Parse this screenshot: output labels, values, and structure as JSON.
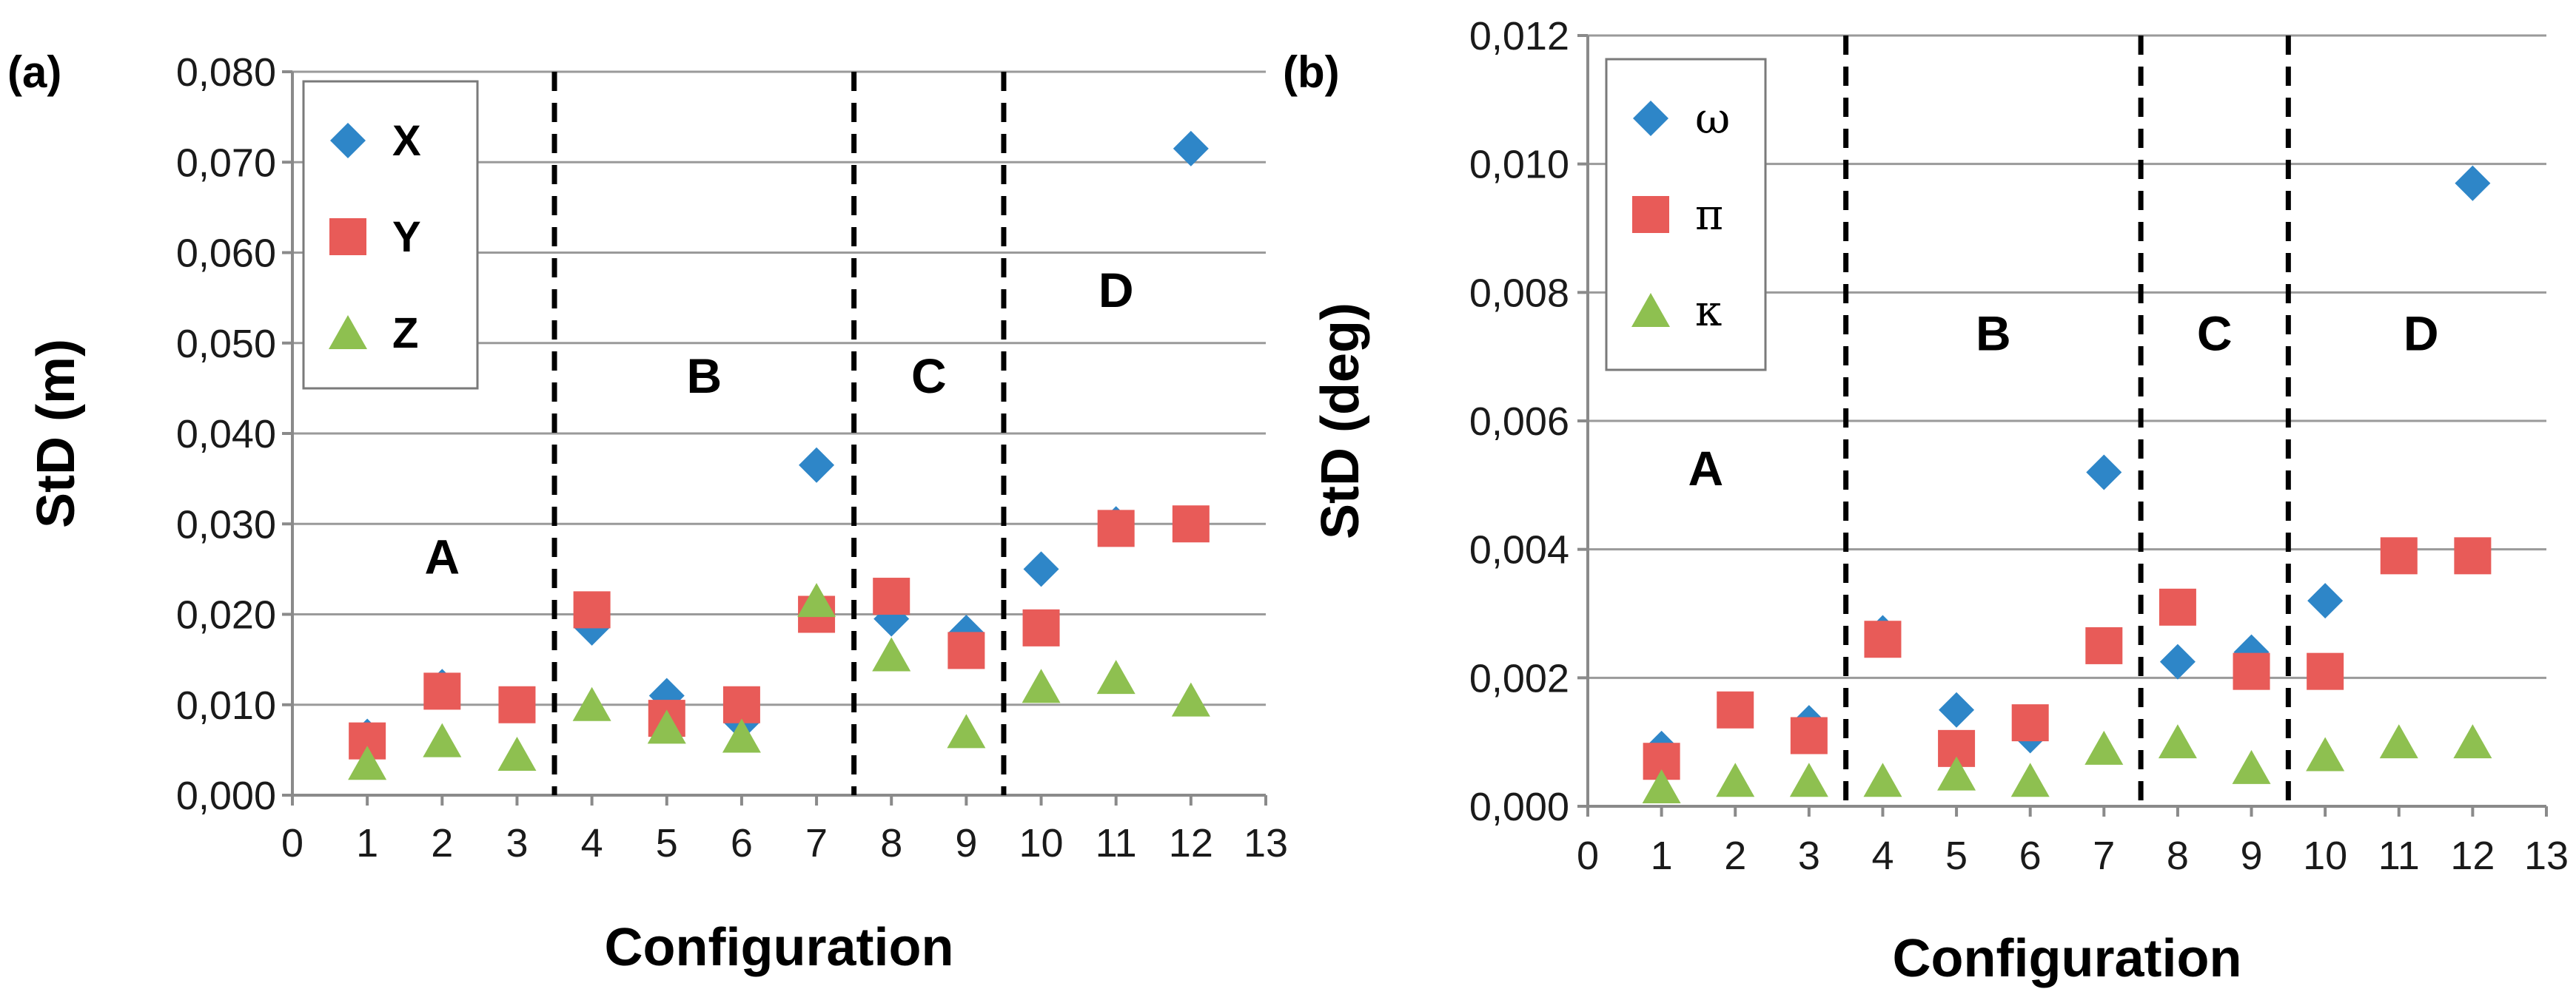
{
  "colors": {
    "X": "#2e86c8",
    "Y": "#e85b58",
    "Z": "#8ec050",
    "grid": "#9a9a9a",
    "axis": "#8a8a8a"
  },
  "chart_data": [
    {
      "panel": "(a)",
      "type": "scatter",
      "xlabel": "Configuration",
      "ylabel": "StD (m)",
      "xlim": [
        0,
        13
      ],
      "ylim": [
        0,
        0.08
      ],
      "xticks": [
        "0",
        "1",
        "2",
        "3",
        "4",
        "5",
        "6",
        "7",
        "8",
        "9",
        "10",
        "11",
        "12",
        "13"
      ],
      "yticks": [
        "0,000",
        "0,010",
        "0,020",
        "0,030",
        "0,040",
        "0,050",
        "0,060",
        "0,070",
        "0,080"
      ],
      "x": [
        1,
        2,
        3,
        4,
        5,
        6,
        7,
        8,
        9,
        10,
        11,
        12
      ],
      "series": [
        {
          "name": "X",
          "marker": "diamond",
          "values": [
            0.0065,
            0.012,
            0.01,
            0.0185,
            0.011,
            0.008,
            0.0365,
            0.0195,
            0.018,
            0.025,
            0.03,
            0.0715
          ]
        },
        {
          "name": "Y",
          "marker": "square",
          "values": [
            0.006,
            0.0115,
            0.01,
            0.0205,
            0.0085,
            0.01,
            0.02,
            0.022,
            0.016,
            0.0185,
            0.0295,
            0.03
          ]
        },
        {
          "name": "Z",
          "marker": "triangle",
          "values": [
            0.0035,
            0.006,
            0.0045,
            0.01,
            0.0075,
            0.0065,
            0.0215,
            0.0155,
            0.007,
            0.012,
            0.013,
            0.0105
          ]
        }
      ],
      "dividers": [
        3.5,
        7.5,
        9.5
      ],
      "regions": [
        {
          "label": "A",
          "x": 2,
          "y": 0.0245
        },
        {
          "label": "B",
          "x": 5.5,
          "y": 0.0445
        },
        {
          "label": "C",
          "x": 8.5,
          "y": 0.0445
        },
        {
          "label": "D",
          "x": 11,
          "y": 0.054
        }
      ],
      "legend": "top-left"
    },
    {
      "panel": "(b)",
      "type": "scatter",
      "xlabel": "Configuration",
      "ylabel": "StD (deg)",
      "xlim": [
        0,
        13
      ],
      "ylim": [
        0,
        0.012
      ],
      "xticks": [
        "0",
        "1",
        "2",
        "3",
        "4",
        "5",
        "6",
        "7",
        "8",
        "9",
        "10",
        "11",
        "12",
        "13"
      ],
      "yticks": [
        "0,000",
        "0,002",
        "0,004",
        "0,006",
        "0,008",
        "0,010",
        "0,012"
      ],
      "x": [
        1,
        2,
        3,
        4,
        5,
        6,
        7,
        8,
        9,
        10,
        11,
        12
      ],
      "series": [
        {
          "name": "ω",
          "marker": "diamond",
          "values": [
            0.0009,
            0.0015,
            0.0013,
            0.0027,
            0.0015,
            0.0011,
            0.0052,
            0.00225,
            0.0024,
            0.0032,
            0.0039,
            0.0097
          ]
        },
        {
          "name": "π",
          "marker": "square",
          "values": [
            0.0007,
            0.0015,
            0.0011,
            0.0026,
            0.0009,
            0.0013,
            0.0025,
            0.0031,
            0.0021,
            0.0021,
            0.0039,
            0.0039
          ]
        },
        {
          "name": "κ",
          "marker": "triangle",
          "values": [
            0.0003,
            0.0004,
            0.0004,
            0.0004,
            0.0005,
            0.0004,
            0.0009,
            0.001,
            0.0006,
            0.0008,
            0.001,
            0.001
          ]
        }
      ],
      "dividers": [
        3.5,
        7.5,
        9.5
      ],
      "regions": [
        {
          "label": "A",
          "x": 1.6,
          "y": 0.005
        },
        {
          "label": "B",
          "x": 5.5,
          "y": 0.0071
        },
        {
          "label": "C",
          "x": 8.5,
          "y": 0.0071
        },
        {
          "label": "D",
          "x": 11.3,
          "y": 0.0071
        }
      ],
      "legend": "top-left"
    }
  ]
}
